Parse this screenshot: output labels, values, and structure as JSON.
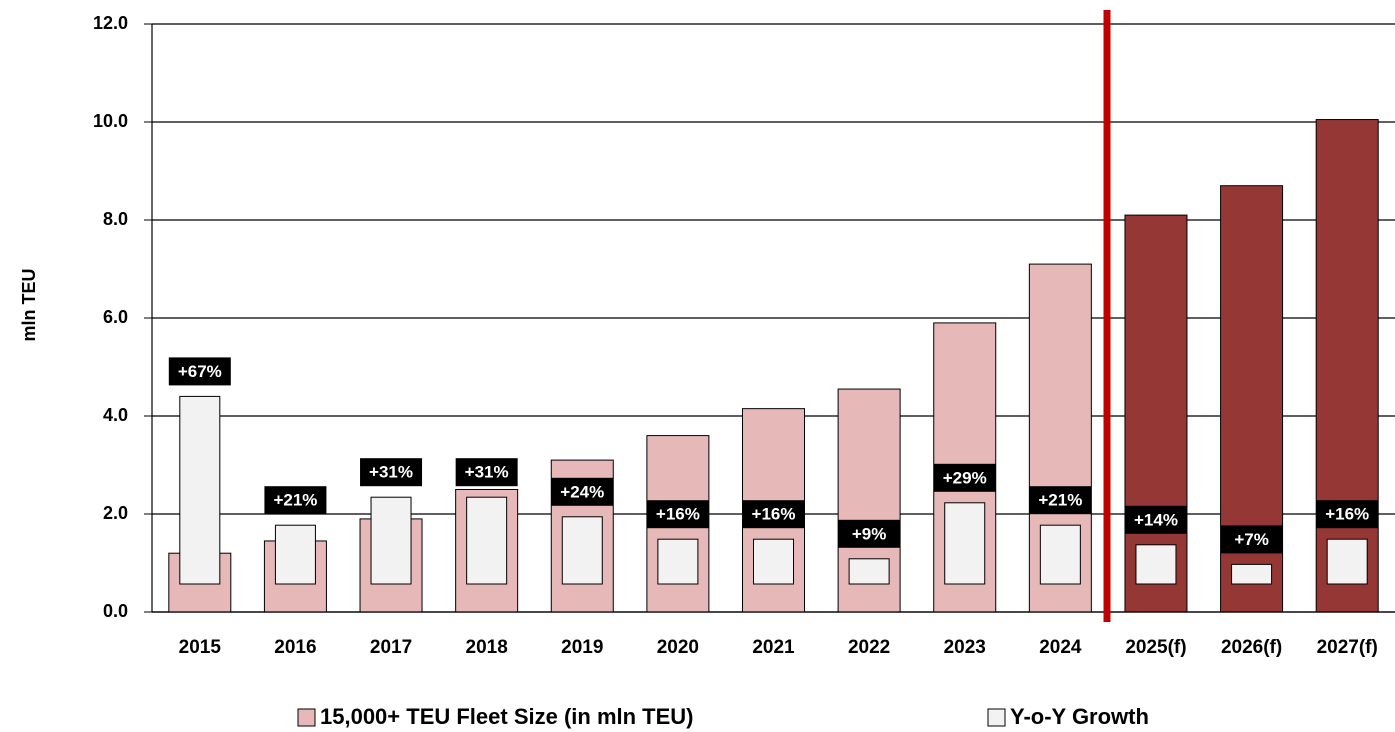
{
  "chart_data": {
    "type": "bar",
    "y_label": "mln TEU",
    "categories": [
      "2015",
      "2016",
      "2017",
      "2018",
      "2019",
      "2020",
      "2021",
      "2022",
      "2023",
      "2024",
      "2025(f)",
      "2026(f)",
      "2027(f)"
    ],
    "series": [
      {
        "name": "15,000+ TEU Fleet Size (in mln TEU)",
        "color": "#e6b9b8",
        "colors": [
          "#e6b9b8",
          "#e6b9b8",
          "#e6b9b8",
          "#e6b9b8",
          "#e6b9b8",
          "#e6b9b8",
          "#e6b9b8",
          "#e6b9b8",
          "#e6b9b8",
          "#e6b9b8",
          "#953735",
          "#953735",
          "#953735"
        ],
        "values": [
          1.2,
          1.45,
          1.9,
          2.5,
          3.1,
          3.6,
          4.15,
          4.55,
          5.9,
          7.1,
          8.1,
          8.7,
          10.05
        ]
      },
      {
        "name": "Y-o-Y Growth",
        "color": "#f2f2f2",
        "axis": "y2",
        "values": [
          67,
          21,
          31,
          31,
          24,
          16,
          16,
          9,
          29,
          21,
          14,
          7,
          16
        ],
        "value_labels": [
          "+67%",
          "+21%",
          "+31%",
          "+31%",
          "+24%",
          "+16%",
          "+16%",
          "+9%",
          "+29%",
          "+21%",
          "+14%",
          "+7%",
          "+16%"
        ]
      }
    ],
    "ylim": [
      0,
      12
    ],
    "yticks": [
      {
        "value": 0,
        "label": "0.0"
      },
      {
        "value": 2,
        "label": "2.0"
      },
      {
        "value": 4,
        "label": "4.0"
      },
      {
        "value": 6,
        "label": "6.0"
      },
      {
        "value": 8,
        "label": "8.0"
      },
      {
        "value": 10,
        "label": "10.0"
      },
      {
        "value": 12,
        "label": "12.0"
      }
    ],
    "y2lim": [
      -10,
      200
    ],
    "grid": true
  }
}
